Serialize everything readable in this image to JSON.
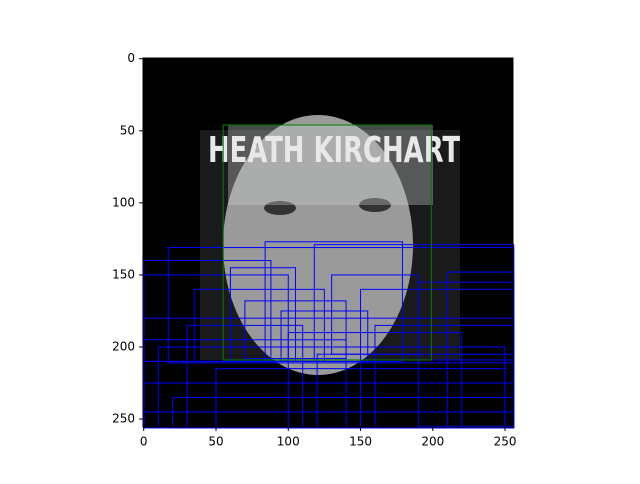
{
  "chart_data": {
    "type": "image",
    "image_text": "HEATH KIRCHART",
    "xlim": [
      -0.5,
      255.5
    ],
    "ylim": [
      255.5,
      -0.5
    ],
    "xticks": [
      0,
      50,
      100,
      150,
      200,
      250
    ],
    "yticks": [
      0,
      50,
      100,
      150,
      200,
      250
    ],
    "highlight_color": "#008000",
    "highlight": [
      55,
      46,
      144,
      163
    ],
    "box_color": "#0000ff",
    "boxes": [
      [
        0,
        140,
        88,
        70
      ],
      [
        17,
        131,
        239,
        80
      ],
      [
        84,
        127,
        95,
        83
      ],
      [
        118,
        129,
        138,
        80
      ],
      [
        0,
        150,
        100,
        60
      ],
      [
        35,
        160,
        90,
        50
      ],
      [
        70,
        168,
        70,
        40
      ],
      [
        130,
        150,
        60,
        55
      ],
      [
        0,
        180,
        256,
        76
      ],
      [
        10,
        200,
        240,
        56
      ],
      [
        50,
        215,
        200,
        41
      ],
      [
        0,
        225,
        256,
        31
      ],
      [
        100,
        190,
        120,
        66
      ],
      [
        150,
        160,
        106,
        96
      ],
      [
        190,
        155,
        66,
        100
      ],
      [
        60,
        145,
        45,
        65
      ],
      [
        95,
        175,
        60,
        35
      ],
      [
        0,
        195,
        140,
        61
      ],
      [
        120,
        205,
        136,
        51
      ],
      [
        20,
        235,
        236,
        21
      ],
      [
        0,
        245,
        256,
        11
      ],
      [
        210,
        148,
        46,
        108
      ],
      [
        30,
        185,
        80,
        71
      ],
      [
        160,
        185,
        96,
        71
      ]
    ]
  }
}
